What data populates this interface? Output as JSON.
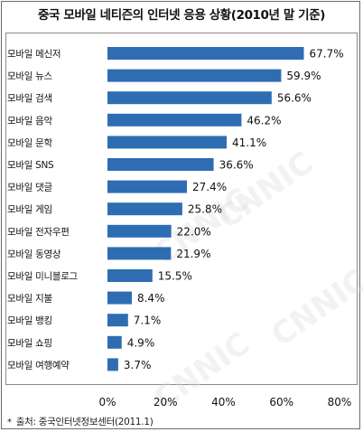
{
  "header": {
    "title": "중국 모바일 네티즌의 인터넷 응용 상황(2010년 말 기준)"
  },
  "footer": {
    "bullet": "*",
    "source": "출처: 중국인터넷정보센터(2011.1)"
  },
  "colors": {
    "bar": "#2f6db3",
    "label": "#111111",
    "watermark": "#d9d9d9"
  },
  "watermark": {
    "text": "CNNIC"
  },
  "chart_data": {
    "type": "bar",
    "orientation": "horizontal",
    "title": "중국 모바일 네티즌의 인터넷 응용 상황(2010년 말 기준)",
    "xlabel": "",
    "ylabel": "",
    "xlim": [
      0,
      80
    ],
    "xticks": [
      "0%",
      "20%",
      "40%",
      "60%",
      "80%"
    ],
    "xtick_values": [
      0,
      20,
      40,
      60,
      80
    ],
    "grid": false,
    "legend": "none",
    "categories": [
      "모바일 메신저",
      "모바일 뉴스",
      "모바일 검색",
      "모바일 음악",
      "모바일 문학",
      "모바일 SNS",
      "모바일 댓글",
      "모바일 게임",
      "모바일 전자우편",
      "모바일 동영상",
      "모바일 미니블로그",
      "모바일 지불",
      "모바일 뱅킹",
      "모바일 쇼핑",
      "모바일 여행예약"
    ],
    "values": [
      67.7,
      59.9,
      56.6,
      46.2,
      41.1,
      36.6,
      27.4,
      25.8,
      22.0,
      21.9,
      15.5,
      8.4,
      7.1,
      4.9,
      3.7
    ],
    "value_labels": [
      "67.7%",
      "59.9%",
      "56.6%",
      "46.2%",
      "41.1%",
      "36.6%",
      "27.4%",
      "25.8%",
      "22.0%",
      "21.9%",
      "15.5%",
      "8.4%",
      "7.1%",
      "4.9%",
      "3.7%"
    ]
  }
}
